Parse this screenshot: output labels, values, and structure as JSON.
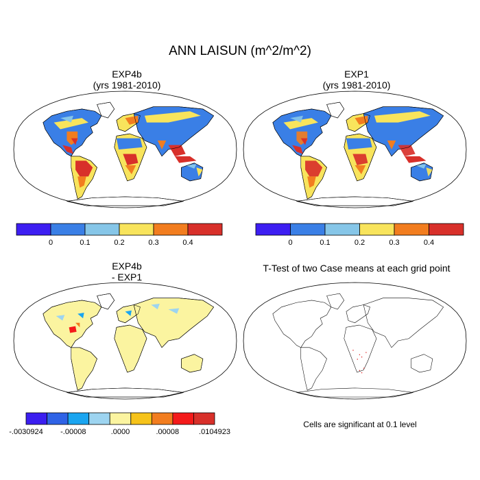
{
  "title": "ANN LAISUN (m^2/m^2)",
  "panels": [
    {
      "title": "EXP4b",
      "subtitle": "(yrs 1981-2010)"
    },
    {
      "title": "EXP1",
      "subtitle": "(yrs 1981-2010)"
    },
    {
      "title": "EXP4b",
      "subtitle": "- EXP1"
    },
    {
      "title": "T-Test of two Case means at each grid point",
      "subtitle": ""
    }
  ],
  "note": "Cells are significant at 0.1 level",
  "chart_data": [
    {
      "type": "heatmap",
      "title": "EXP4b",
      "subtitle": "(yrs 1981-2010)",
      "colorbar": {
        "ticks": [
          "0",
          "0.1",
          "0.2",
          "0.3",
          "0.4"
        ],
        "colors": [
          "#3d1ef2",
          "#3a7fe6",
          "#86c6e8",
          "#f8e45c",
          "#f27d1f",
          "#d8302a"
        ]
      }
    },
    {
      "type": "heatmap",
      "title": "EXP1",
      "subtitle": "(yrs 1981-2010)",
      "colorbar": {
        "ticks": [
          "0",
          "0.1",
          "0.2",
          "0.3",
          "0.4"
        ],
        "colors": [
          "#3d1ef2",
          "#3a7fe6",
          "#86c6e8",
          "#f8e45c",
          "#f27d1f",
          "#d8302a"
        ]
      }
    },
    {
      "type": "heatmap",
      "title": "EXP4b",
      "subtitle": "- EXP1",
      "colorbar": {
        "ticks": [
          "-.0030924",
          "-.00008",
          ".0000",
          ".00008",
          ".0104923"
        ],
        "colors": [
          "#3b1ef0",
          "#2f63e6",
          "#1aa5f0",
          "#9dd4f0",
          "#fbf4a0",
          "#f6c31a",
          "#f27d1f",
          "#f41a1a",
          "#d8302a"
        ]
      }
    },
    {
      "type": "heatmap",
      "title": "T-Test of two Case means at each grid point",
      "note": "Cells are significant at 0.1 level"
    }
  ]
}
